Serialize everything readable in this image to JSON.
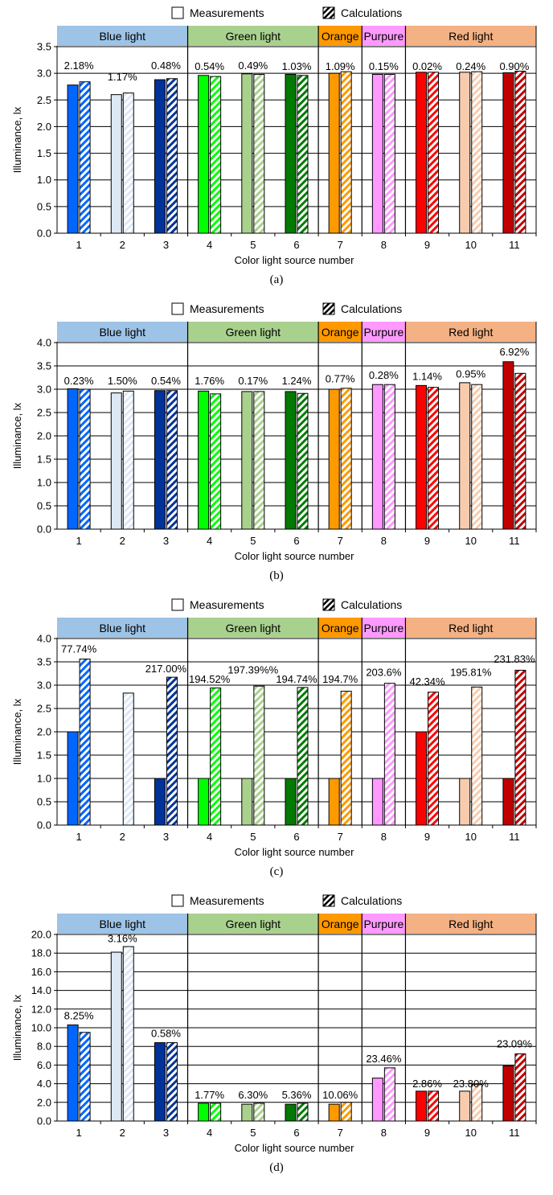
{
  "legend": {
    "measurements": "Measurements",
    "calculations": "Calculations"
  },
  "groups": [
    {
      "label": "Blue light",
      "color": "#9dc3e6",
      "from": 1,
      "to": 3
    },
    {
      "label": "Green light",
      "color": "#a9d18e",
      "from": 4,
      "to": 6
    },
    {
      "label": "Orange",
      "color": "#ff9900",
      "from": 7,
      "to": 7
    },
    {
      "label": "Purpure",
      "color": "#ff99ff",
      "from": 8,
      "to": 8
    },
    {
      "label": "Red light",
      "color": "#f4b183",
      "from": 9,
      "to": 11
    }
  ],
  "source_colors": [
    "#0066ff",
    "#dde8f5",
    "#003399",
    "#00ff00",
    "#a9d18e",
    "#007a00",
    "#ff9900",
    "#ff99ff",
    "#ff0000",
    "#f8cbad",
    "#c00000"
  ],
  "chart_data": [
    {
      "type": "bar",
      "caption": "(a)",
      "categories": [
        "1",
        "2",
        "3",
        "4",
        "5",
        "6",
        "7",
        "8",
        "9",
        "10",
        "11"
      ],
      "xlabel": "Color light source number",
      "ylabel": "Illuminance, lx",
      "ylim": [
        0,
        3.5
      ],
      "yticks": [
        "0.0",
        "0.5",
        "1.0",
        "1.5",
        "2.0",
        "2.5",
        "3.0",
        "3.5"
      ],
      "series": [
        {
          "name": "Measurements",
          "values": [
            2.78,
            2.6,
            2.88,
            2.96,
            2.99,
            2.98,
            3.0,
            2.98,
            3.02,
            3.02,
            3.01
          ]
        },
        {
          "name": "Calculations",
          "values": [
            2.84,
            2.63,
            2.9,
            2.94,
            2.98,
            2.96,
            3.03,
            2.98,
            3.02,
            3.03,
            3.04
          ]
        }
      ],
      "percent_labels": [
        "2.18%",
        "1.17%",
        "0.48%",
        "0.54%",
        "0.49%",
        "1.03%",
        "1.09%",
        "0.15%",
        "0.02%",
        "0.24%",
        "0.90%"
      ],
      "percent_positions": [
        3.08,
        2.87,
        3.08,
        3.06,
        3.08,
        3.06,
        3.06,
        3.06,
        3.06,
        3.06,
        3.06
      ]
    },
    {
      "type": "bar",
      "caption": "(b)",
      "categories": [
        "1",
        "2",
        "3",
        "4",
        "5",
        "6",
        "7",
        "8",
        "9",
        "10",
        "11"
      ],
      "xlabel": "Color light source number",
      "ylabel": "Illuminance, lx",
      "ylim": [
        0,
        4.0
      ],
      "yticks": [
        "0.0",
        "0.5",
        "1.0",
        "1.5",
        "2.0",
        "2.5",
        "3.0",
        "3.5",
        "4.0"
      ],
      "series": [
        {
          "name": "Measurements",
          "values": [
            3.01,
            2.92,
            2.97,
            2.96,
            2.95,
            2.95,
            3.0,
            3.1,
            3.08,
            3.14,
            3.59
          ]
        },
        {
          "name": "Calculations",
          "values": [
            3.0,
            2.96,
            2.97,
            2.9,
            2.95,
            2.91,
            3.02,
            3.1,
            3.04,
            3.1,
            3.34
          ]
        }
      ],
      "percent_labels": [
        "0.23%",
        "1.50%",
        "0.54%",
        "1.76%",
        "0.17%",
        "1.24%",
        "0.77%",
        "0.28%",
        "1.14%",
        "0.95%",
        "6.92%"
      ],
      "percent_positions": [
        3.1,
        3.1,
        3.1,
        3.1,
        3.1,
        3.1,
        3.15,
        3.22,
        3.2,
        3.25,
        3.72
      ]
    },
    {
      "type": "bar",
      "caption": "(c)",
      "categories": [
        "1",
        "2",
        "3",
        "4",
        "5",
        "6",
        "7",
        "8",
        "9",
        "10",
        "11"
      ],
      "xlabel": "Color light source number",
      "ylabel": "Illuminance, lx",
      "ylim": [
        0,
        4.0
      ],
      "yticks": [
        "0.0",
        "0.5",
        "1.0",
        "1.5",
        "2.0",
        "2.5",
        "3.0",
        "3.5",
        "4.0"
      ],
      "series": [
        {
          "name": "Measurements",
          "values": [
            2.0,
            0.0,
            1.0,
            1.0,
            1.0,
            1.0,
            1.0,
            1.0,
            2.0,
            1.0,
            1.0
          ]
        },
        {
          "name": "Calculations",
          "values": [
            3.56,
            2.83,
            3.17,
            2.94,
            2.98,
            2.95,
            2.87,
            3.04,
            2.85,
            2.96,
            3.32
          ]
        }
      ],
      "percent_labels": [
        "77.74%",
        "",
        "217.00%",
        "194.52%",
        "197.39%%",
        "194.74%",
        "194.7%",
        "203.6%",
        "42.34%",
        "195.81%",
        "231.83%"
      ],
      "percent_positions": [
        3.7,
        0,
        3.28,
        3.05,
        3.25,
        3.05,
        3.05,
        3.2,
        3.0,
        3.2,
        3.48
      ]
    },
    {
      "type": "bar",
      "caption": "(d)",
      "categories": [
        "1",
        "2",
        "3",
        "4",
        "5",
        "6",
        "7",
        "8",
        "9",
        "10",
        "11"
      ],
      "xlabel": "Color light source number",
      "ylabel": "Illuminance, lx",
      "ylim": [
        0,
        20.0
      ],
      "yticks": [
        "0.0",
        "2.0",
        "4.0",
        "6.0",
        "8.0",
        "10.0",
        "12.0",
        "14.0",
        "16.0",
        "18.0",
        "20.0"
      ],
      "series": [
        {
          "name": "Measurements",
          "values": [
            10.3,
            18.1,
            8.4,
            1.9,
            1.8,
            1.8,
            1.8,
            4.6,
            3.2,
            3.2,
            5.9
          ]
        },
        {
          "name": "Calculations",
          "values": [
            9.5,
            18.7,
            8.4,
            1.9,
            1.9,
            1.9,
            2.0,
            5.7,
            3.2,
            3.9,
            7.2
          ]
        }
      ],
      "percent_labels": [
        "8.25%",
        "3.16%",
        "0.58%",
        "1.77%",
        "6.30%",
        "5.36%",
        "10.06%",
        "23.46%",
        "2.86%",
        "23.80%",
        "23.09%"
      ],
      "percent_positions": [
        10.9,
        19.2,
        9.0,
        2.4,
        2.4,
        2.4,
        2.4,
        6.3,
        3.6,
        3.6,
        7.9
      ]
    }
  ]
}
